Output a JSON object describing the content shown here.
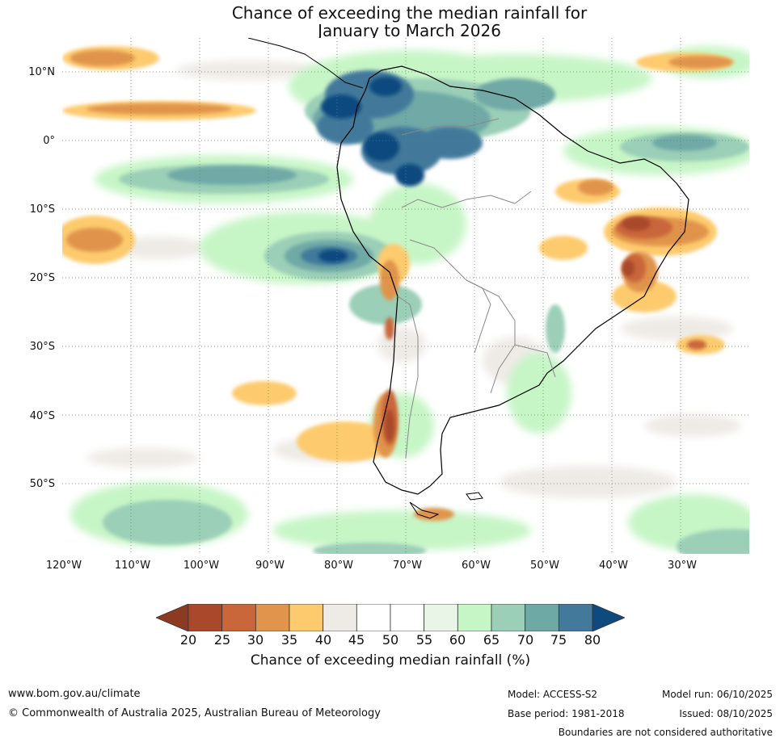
{
  "title": {
    "line1": "Chance of exceeding the median rainfall for",
    "line2": "January to March 2026"
  },
  "map": {
    "lat_labels": [
      "10°N",
      "0°",
      "10°S",
      "20°S",
      "30°S",
      "40°S",
      "50°S"
    ],
    "lon_labels": [
      "120°W",
      "110°W",
      "100°W",
      "90°W",
      "80°W",
      "70°W",
      "60°W",
      "50°W",
      "40°W",
      "30°W"
    ],
    "extent": {
      "lon_min": -120,
      "lon_max": -20,
      "lat_min": -60,
      "lat_max": 15
    }
  },
  "legend": {
    "ticks": [
      "20",
      "25",
      "30",
      "35",
      "40",
      "45",
      "50",
      "55",
      "60",
      "65",
      "70",
      "75",
      "80"
    ],
    "colors": [
      "#a9482b",
      "#c9663a",
      "#e0944c",
      "#fdcb6e",
      "#eeebe6",
      "#ffffff",
      "#ffffff",
      "#e8f5e7",
      "#c6f5c6",
      "#9bcfb7",
      "#6fa9a6",
      "#43799b"
    ],
    "low_extend_color": "#8c3a22",
    "high_extend_color": "#0f4a7e",
    "label": "Chance of exceeding median rainfall (%)"
  },
  "footer": {
    "website": "www.bom.gov.au/climate",
    "copyright": "© Commonwealth of Australia 2025, Australian Bureau of Meteorology",
    "model": "Model: ACCESS-S2",
    "base_period": "Base period: 1981-2018",
    "model_run": "Model run: 06/10/2025",
    "issued": "Issued: 08/10/2025",
    "boundaries_note": "Boundaries are not considered authoritative"
  }
}
